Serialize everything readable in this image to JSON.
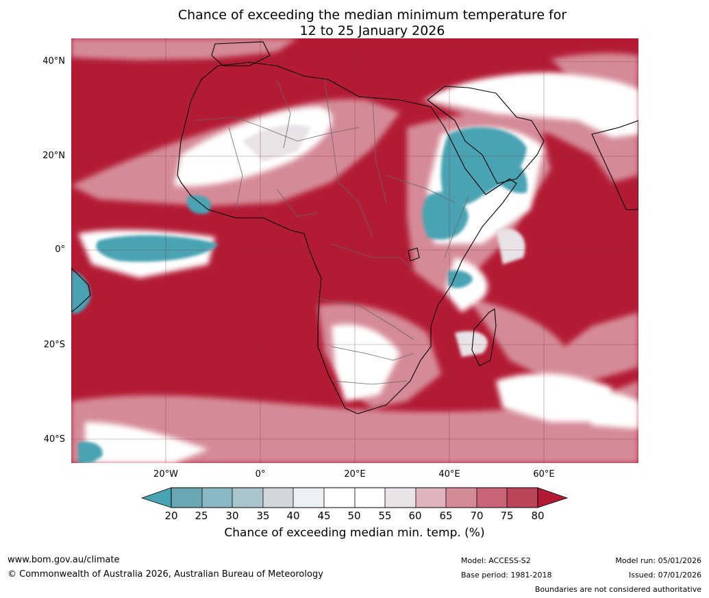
{
  "title": {
    "line1": "Chance of exceeding the median minimum temperature for",
    "line2": "12 to 25 January 2026"
  },
  "map": {
    "latitude_labels": [
      "40°N",
      "20°N",
      "0°",
      "20°S",
      "40°S"
    ],
    "longitude_labels": [
      "20°W",
      "0°",
      "20°E",
      "40°E",
      "60°E"
    ],
    "region": "Africa"
  },
  "colorbar": {
    "ticks": [
      "20",
      "25",
      "30",
      "35",
      "40",
      "45",
      "50",
      "55",
      "60",
      "65",
      "70",
      "75",
      "80"
    ],
    "colors": [
      "#4aa3b3",
      "#6aa7b2",
      "#88b9c4",
      "#a9c5cb",
      "#d3d7d9",
      "#eaf0f3",
      "#ffffff",
      "#ffffff",
      "#e8e3e6",
      "#dfb3bd",
      "#d58b97",
      "#c86475",
      "#bb4459",
      "#b31b35"
    ],
    "label": "Chance of exceeding median min. temp. (%)"
  },
  "footer": {
    "website": "www.bom.gov.au/climate",
    "copyright": "© Commonwealth of Australia 2026, Australian Bureau of Meteorology",
    "model": "Model: ACCESS-S2",
    "base_period": "Base period: 1981-2018",
    "model_run": "Model run: 05/01/2026",
    "issued": "Issued: 07/01/2026",
    "disclaimer": "Boundaries are not considered authoritative"
  }
}
